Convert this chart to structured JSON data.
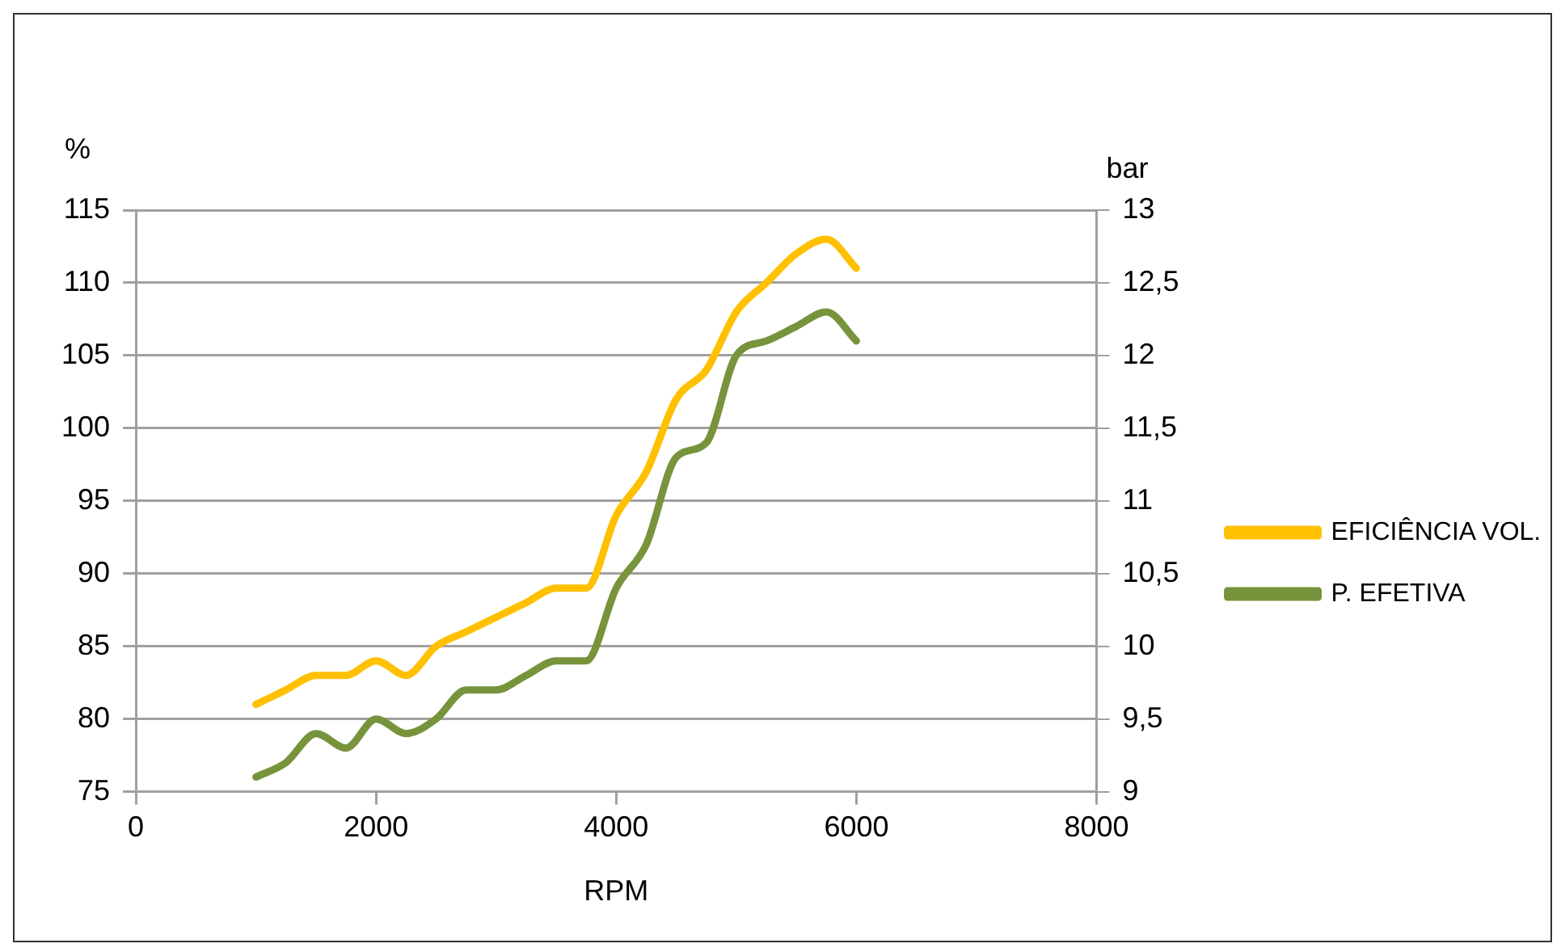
{
  "chart_data": {
    "type": "line",
    "xlabel": "RPM",
    "ylabel": "%",
    "y2label": "bar",
    "x": [
      1000,
      1250,
      1500,
      1750,
      2000,
      2250,
      2500,
      2750,
      3000,
      3250,
      3500,
      3750,
      4000,
      4250,
      4500,
      4750,
      5000,
      5250,
      5500,
      5750,
      6000
    ],
    "series": [
      {
        "name": "EFICIÊNCIA VOL.",
        "color": "#ffc000",
        "values": [
          81,
          82,
          83,
          83,
          84,
          83,
          85,
          86,
          87,
          88,
          89,
          89,
          94,
          97,
          102,
          104,
          108,
          110,
          112,
          113,
          111
        ]
      },
      {
        "name": "P. EFETIVA",
        "color": "#77933c",
        "axis": "y2",
        "values": [
          9.1,
          9.2,
          9.4,
          9.3,
          9.5,
          9.4,
          9.5,
          9.7,
          9.7,
          9.8,
          9.9,
          9.9,
          10.4,
          10.7,
          11.3,
          11.4,
          12,
          12.1,
          12.2,
          12.3,
          12.1
        ]
      }
    ],
    "xlim": [
      0,
      8000
    ],
    "xticks": [
      0,
      2000,
      4000,
      6000,
      8000
    ],
    "ylim": [
      75,
      115
    ],
    "yticks": [
      75,
      80,
      85,
      90,
      95,
      100,
      105,
      110,
      115
    ],
    "y2lim": [
      9,
      13
    ],
    "y2ticks": [
      9,
      {
        "value": 9.5,
        "label": "9,5"
      },
      10,
      {
        "value": 10.5,
        "label": "10,5"
      },
      11,
      {
        "value": 11.5,
        "label": "11,5"
      },
      12,
      {
        "value": 12.5,
        "label": "12,5"
      },
      13
    ],
    "grid": "y",
    "legend": "right",
    "marker": "none",
    "line_style": "solid"
  }
}
